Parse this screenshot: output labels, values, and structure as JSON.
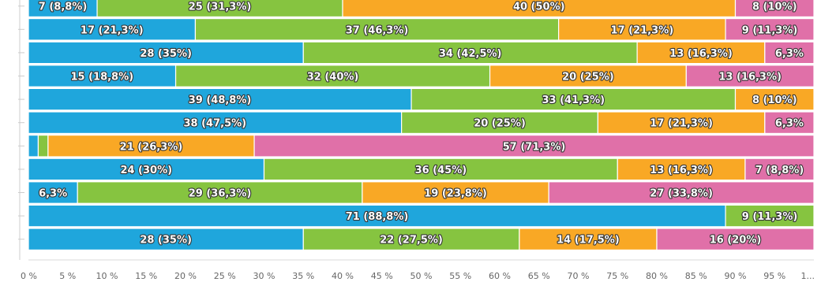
{
  "chart_data": {
    "type": "bar",
    "orientation": "horizontal",
    "stacked": "percent",
    "colors": [
      "#1fa6dc",
      "#86c440",
      "#f9a825",
      "#e070a8"
    ],
    "rows": [
      {
        "values": [
          7,
          25,
          40,
          8
        ],
        "labels": [
          "7 (8,8%)",
          "25 (31,3%)",
          "40 (50%)",
          "8 (10%)"
        ]
      },
      {
        "values": [
          17,
          37,
          17,
          9
        ],
        "labels": [
          "17 (21,3%)",
          "37 (46,3%)",
          "17 (21,3%)",
          "9 (11,3%)"
        ]
      },
      {
        "values": [
          28,
          34,
          13,
          5
        ],
        "labels": [
          "28 (35%)",
          "34 (42,5%)",
          "13 (16,3%)",
          "6,3%"
        ]
      },
      {
        "values": [
          15,
          32,
          20,
          13
        ],
        "labels": [
          "15 (18,8%)",
          "32 (40%)",
          "20 (25%)",
          "13 (16,3%)"
        ]
      },
      {
        "values": [
          39,
          33,
          8,
          0
        ],
        "labels": [
          "39 (48,8%)",
          "33 (41,3%)",
          "8 (10%)",
          ""
        ]
      },
      {
        "values": [
          38,
          20,
          17,
          5
        ],
        "labels": [
          "38 (47,5%)",
          "20 (25%)",
          "17 (21,3%)",
          "6,3%"
        ]
      },
      {
        "values": [
          1,
          1,
          21,
          57
        ],
        "labels": [
          "",
          "",
          "21 (26,3%)",
          "57 (71,3%)"
        ]
      },
      {
        "values": [
          24,
          36,
          13,
          7
        ],
        "labels": [
          "24 (30%)",
          "36 (45%)",
          "13 (16,3%)",
          "7 (8,8%)"
        ]
      },
      {
        "values": [
          5,
          29,
          19,
          27
        ],
        "labels": [
          "6,3%",
          "29 (36,3%)",
          "19 (23,8%)",
          "27 (33,8%)"
        ]
      },
      {
        "values": [
          71,
          9,
          0,
          0
        ],
        "labels": [
          "71 (88,8%)",
          "9 (11,3%)",
          "",
          ""
        ]
      },
      {
        "values": [
          28,
          22,
          14,
          16
        ],
        "labels": [
          "28 (35%)",
          "22 (27,5%)",
          "14 (17,5%)",
          "16 (20%)"
        ]
      }
    ],
    "x_ticks": [
      "0 %",
      "5 %",
      "10 %",
      "15 %",
      "20 %",
      "25 %",
      "30 %",
      "35 %",
      "40 %",
      "45 %",
      "50 %",
      "55 %",
      "60 %",
      "65 %",
      "70 %",
      "75 %",
      "80 %",
      "85 %",
      "90 %",
      "95 %",
      "1..."
    ],
    "xlim": [
      0,
      100
    ],
    "grid": false,
    "legend": "none"
  }
}
